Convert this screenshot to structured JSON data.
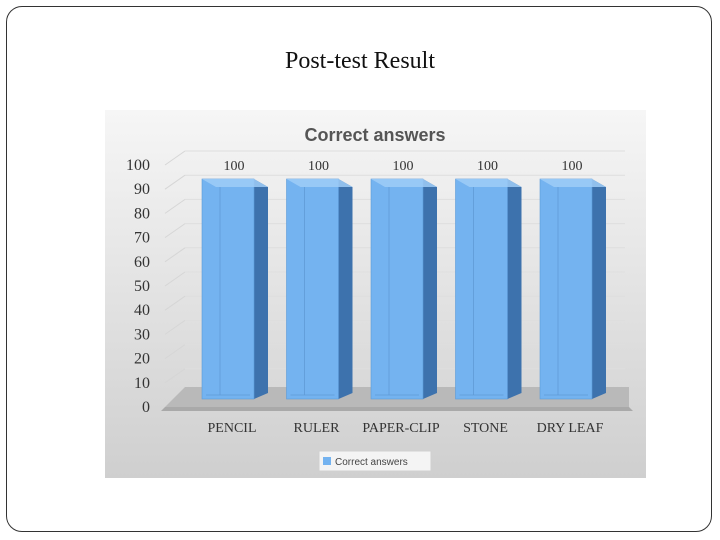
{
  "slide": {
    "title": "Post-test Result"
  },
  "chart_data": {
    "type": "bar",
    "title": "Correct answers",
    "categories": [
      "PENCIL",
      "RULER",
      "PAPER-CLIP",
      "STONE",
      "DRY LEAF"
    ],
    "series": [
      {
        "name": "Correct answers",
        "values": [
          100,
          100,
          100,
          100,
          100
        ]
      }
    ],
    "yticks": [
      "0",
      "10",
      "20",
      "30",
      "40",
      "50",
      "60",
      "70",
      "80",
      "90",
      "100"
    ],
    "ylim": [
      0,
      100
    ],
    "grid": true,
    "legend": "bottom",
    "style": "3d-columns",
    "colors": {
      "bar_front": "#74b3f0",
      "bar_side": "#3d72ad",
      "bar_top": "#9fcdf7",
      "background_top": "#f6f6f6",
      "background_bottom": "#cfcfcf"
    }
  }
}
